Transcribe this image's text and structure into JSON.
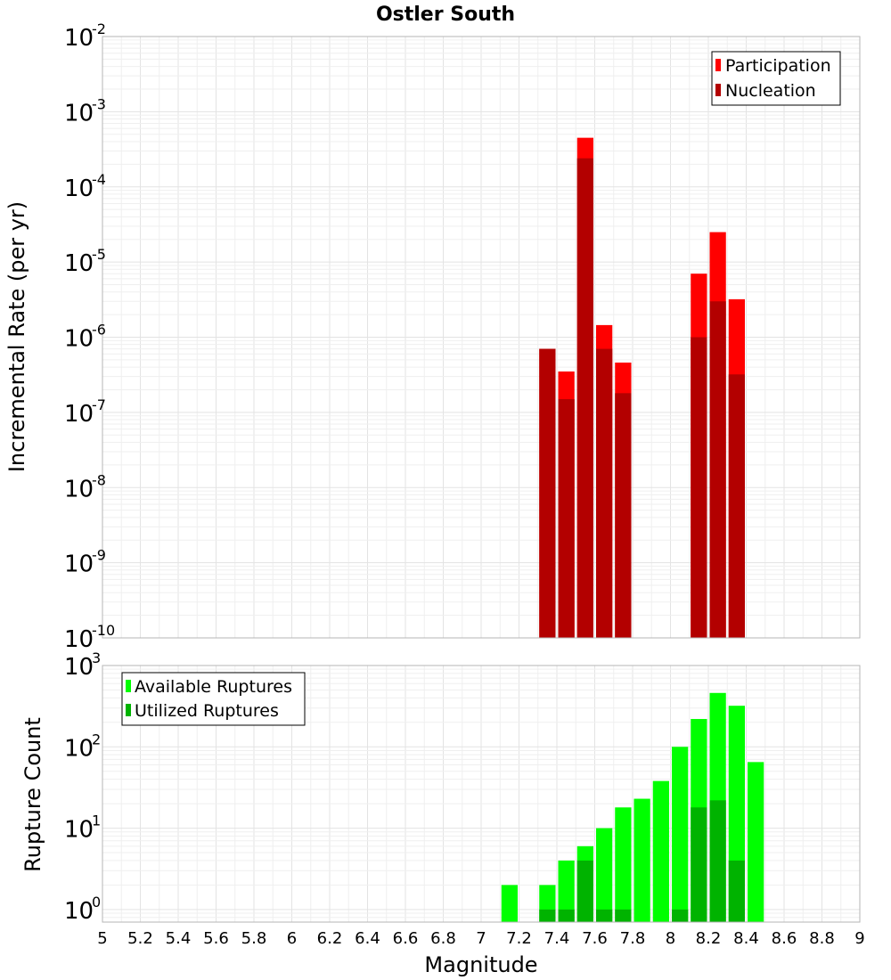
{
  "chart_data": [
    {
      "type": "bar",
      "title": "Ostler South",
      "ylabel": "Incremental Rate (per yr)",
      "xlabel": "",
      "yscale": "log",
      "ylim": [
        1e-10,
        0.01
      ],
      "xlim": [
        5,
        9
      ],
      "bin_width": 0.1,
      "y_ticks": [
        {
          "base": "10",
          "exp": "-10",
          "value": 1e-10
        },
        {
          "base": "10",
          "exp": "-9",
          "value": 1e-09
        },
        {
          "base": "10",
          "exp": "-8",
          "value": 1e-08
        },
        {
          "base": "10",
          "exp": "-7",
          "value": 1e-07
        },
        {
          "base": "10",
          "exp": "-6",
          "value": 1e-06
        },
        {
          "base": "10",
          "exp": "-5",
          "value": 1e-05
        },
        {
          "base": "10",
          "exp": "-4",
          "value": 0.0001
        },
        {
          "base": "10",
          "exp": "-3",
          "value": 0.001
        },
        {
          "base": "10",
          "exp": "-2",
          "value": 0.01
        }
      ],
      "legend": {
        "position": "top-right",
        "entries": [
          "Participation",
          "Nucleation"
        ]
      },
      "series": [
        {
          "name": "Participation",
          "color": "#ff0000",
          "points": [
            {
              "x": 7.35,
              "y": 7e-07
            },
            {
              "x": 7.45,
              "y": 3.5e-07
            },
            {
              "x": 7.55,
              "y": 0.00045
            },
            {
              "x": 7.65,
              "y": 1.45e-06
            },
            {
              "x": 7.75,
              "y": 4.6e-07
            },
            {
              "x": 8.15,
              "y": 7e-06
            },
            {
              "x": 8.25,
              "y": 2.5e-05
            },
            {
              "x": 8.35,
              "y": 3.2e-06
            }
          ]
        },
        {
          "name": "Nucleation",
          "color": "#b30000",
          "points": [
            {
              "x": 7.35,
              "y": 7e-07
            },
            {
              "x": 7.45,
              "y": 1.5e-07
            },
            {
              "x": 7.55,
              "y": 0.00024
            },
            {
              "x": 7.65,
              "y": 7e-07
            },
            {
              "x": 7.75,
              "y": 1.8e-07
            },
            {
              "x": 8.15,
              "y": 1e-06
            },
            {
              "x": 8.25,
              "y": 3e-06
            },
            {
              "x": 8.35,
              "y": 3.2e-07
            }
          ]
        }
      ]
    },
    {
      "type": "bar",
      "title": "",
      "ylabel": "Rupture Count",
      "xlabel": "Magnitude",
      "yscale": "log",
      "ylim": [
        0.7,
        1000
      ],
      "xlim": [
        5,
        9
      ],
      "bin_width": 0.1,
      "y_ticks": [
        {
          "base": "10",
          "exp": "0",
          "value": 1
        },
        {
          "base": "10",
          "exp": "1",
          "value": 10
        },
        {
          "base": "10",
          "exp": "2",
          "value": 100
        },
        {
          "base": "10",
          "exp": "3",
          "value": 1000
        }
      ],
      "x_ticks": [
        "5",
        "5.2",
        "5.4",
        "5.6",
        "5.8",
        "6",
        "6.2",
        "6.4",
        "6.6",
        "6.8",
        "7",
        "7.2",
        "7.4",
        "7.6",
        "7.8",
        "8",
        "8.2",
        "8.4",
        "8.6",
        "8.8",
        "9"
      ],
      "legend": {
        "position": "top-left",
        "entries": [
          "Available Ruptures",
          "Utilized Ruptures"
        ]
      },
      "series": [
        {
          "name": "Available Ruptures",
          "color": "#00ff00",
          "points": [
            {
              "x": 7.15,
              "y": 2
            },
            {
              "x": 7.35,
              "y": 2
            },
            {
              "x": 7.45,
              "y": 4
            },
            {
              "x": 7.55,
              "y": 6
            },
            {
              "x": 7.65,
              "y": 10
            },
            {
              "x": 7.75,
              "y": 18
            },
            {
              "x": 7.85,
              "y": 23
            },
            {
              "x": 7.95,
              "y": 38
            },
            {
              "x": 8.05,
              "y": 100
            },
            {
              "x": 8.15,
              "y": 220
            },
            {
              "x": 8.25,
              "y": 460
            },
            {
              "x": 8.35,
              "y": 320
            },
            {
              "x": 8.45,
              "y": 65
            }
          ]
        },
        {
          "name": "Utilized Ruptures",
          "color": "#00b300",
          "points": [
            {
              "x": 7.35,
              "y": 1
            },
            {
              "x": 7.45,
              "y": 1
            },
            {
              "x": 7.55,
              "y": 4
            },
            {
              "x": 7.65,
              "y": 1
            },
            {
              "x": 7.75,
              "y": 1
            },
            {
              "x": 8.05,
              "y": 1
            },
            {
              "x": 8.15,
              "y": 18
            },
            {
              "x": 8.25,
              "y": 22
            },
            {
              "x": 8.35,
              "y": 4
            }
          ]
        }
      ]
    }
  ]
}
